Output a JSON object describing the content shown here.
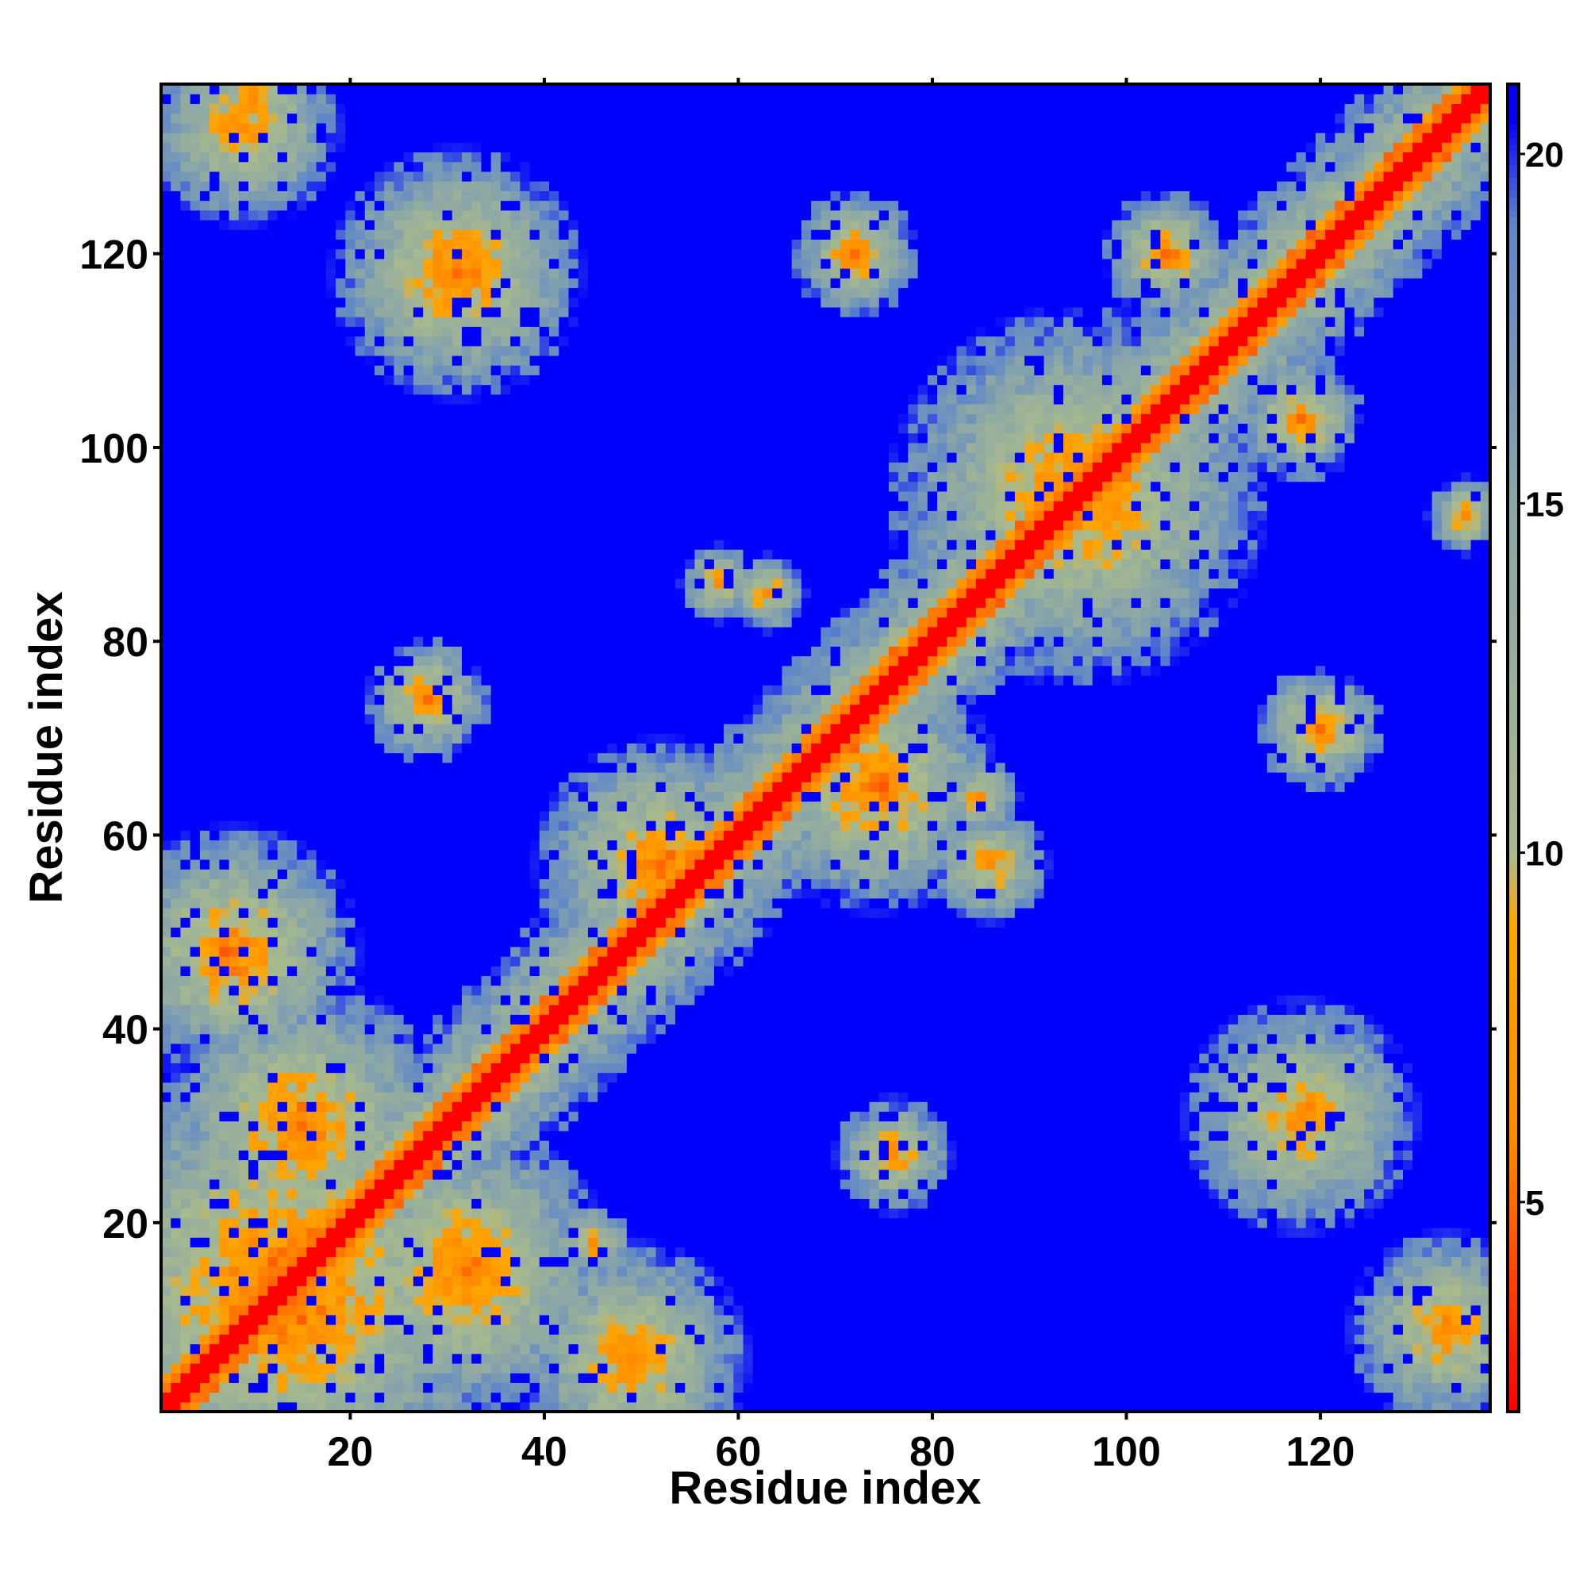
{
  "chart_data": {
    "type": "heatmap",
    "title": "",
    "xlabel": "Residue index",
    "ylabel": "Residue index",
    "xlim": [
      1,
      137
    ],
    "ylim": [
      1,
      137
    ],
    "n_residues": 137,
    "x_ticks": [
      20,
      40,
      60,
      80,
      100,
      120
    ],
    "y_ticks": [
      20,
      40,
      60,
      80,
      100,
      120
    ],
    "colorbar": {
      "range": [
        2,
        21
      ],
      "ticks": [
        5,
        10,
        15,
        20
      ],
      "colors": [
        {
          "value": 2,
          "color": "#ff0000"
        },
        {
          "value": 6,
          "color": "#ff8c00"
        },
        {
          "value": 9,
          "color": "#ffa500"
        },
        {
          "value": 10,
          "color": "#a9ba8c"
        },
        {
          "value": 15,
          "color": "#8aa6a8"
        },
        {
          "value": 19,
          "color": "#5f87c8"
        },
        {
          "value": 20.5,
          "color": "#0000ff"
        }
      ],
      "saturation_color": "#0000ff"
    },
    "diagonal_value": 2,
    "background_value": 21,
    "contact_clusters": [
      {
        "i": 13,
        "j": 13,
        "k": 11,
        "value": 4
      },
      {
        "i": 15,
        "j": 30,
        "k": 7,
        "value": 5
      },
      {
        "i": 8,
        "j": 48,
        "k": 6,
        "value": 5
      },
      {
        "i": 32,
        "j": 15,
        "k": 7,
        "value": 5
      },
      {
        "i": 49,
        "j": 6,
        "k": 6,
        "value": 6
      },
      {
        "i": 31,
        "j": 118,
        "k": 6,
        "value": 5
      },
      {
        "i": 118,
        "j": 31,
        "k": 6,
        "value": 6
      },
      {
        "i": 52,
        "j": 57,
        "k": 6,
        "value": 5
      },
      {
        "i": 74,
        "j": 65,
        "k": 6,
        "value": 5
      },
      {
        "i": 95,
        "j": 95,
        "k": 9,
        "value": 5
      },
      {
        "i": 133,
        "j": 9,
        "k": 5,
        "value": 6
      },
      {
        "i": 9,
        "j": 133,
        "k": 5,
        "value": 6
      },
      {
        "i": 120,
        "j": 71,
        "k": 3,
        "value": 5
      },
      {
        "i": 28,
        "j": 74,
        "k": 3,
        "value": 5
      },
      {
        "i": 72,
        "j": 120,
        "k": 3,
        "value": 5
      },
      {
        "i": 31,
        "j": 117,
        "k": 3,
        "value": 6
      },
      {
        "i": 76,
        "j": 27,
        "k": 3,
        "value": 6
      },
      {
        "i": 104,
        "j": 120,
        "k": 3,
        "value": 5
      },
      {
        "i": 118,
        "j": 103,
        "k": 3,
        "value": 5
      },
      {
        "i": 135,
        "j": 93,
        "k": 2,
        "value": 6
      },
      {
        "i": 58,
        "j": 86,
        "k": 2,
        "value": 6
      },
      {
        "i": 63,
        "j": 85,
        "k": 2,
        "value": 6
      },
      {
        "i": 86,
        "j": 57,
        "k": 3,
        "value": 6
      },
      {
        "i": 85,
        "j": 64,
        "k": 2,
        "value": 6
      },
      {
        "i": 45,
        "j": 18,
        "k": 2,
        "value": 6
      },
      {
        "i": 10,
        "j": 136,
        "k": 3,
        "value": 6
      }
    ]
  }
}
